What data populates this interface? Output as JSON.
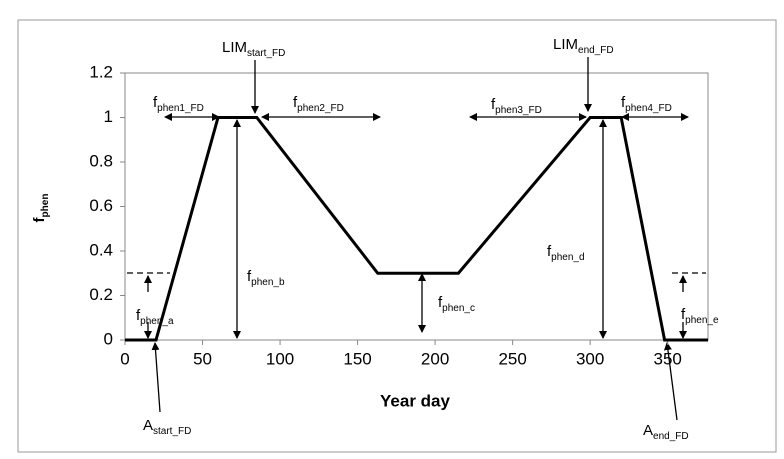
{
  "chart_data": {
    "type": "line",
    "x_label": "Year day",
    "y_label": {
      "text": "f",
      "sub": "phen"
    },
    "x": [
      0,
      20,
      60,
      85,
      163,
      215,
      300,
      320,
      348,
      376
    ],
    "series": [
      {
        "color": "#000000",
        "values": [
          0,
          0,
          1,
          1,
          0.3,
          0.3,
          1,
          1,
          0,
          0
        ]
      }
    ],
    "xlim": [
      0,
      376
    ],
    "ylim": [
      0,
      1.2
    ],
    "xticks": [
      0,
      50,
      100,
      150,
      200,
      250,
      300,
      350
    ],
    "yticks": [
      0,
      0.2,
      0.4,
      0.6,
      0.8,
      1,
      1.2
    ],
    "annotations": [
      {
        "text": "f",
        "sub": "phen1_FD"
      },
      {
        "text": "f",
        "sub": "phen2_FD"
      },
      {
        "text": "f",
        "sub": "phen3_FD"
      },
      {
        "text": "f",
        "sub": "phen4_FD"
      },
      {
        "text": "LIM",
        "sub": "start_FD"
      },
      {
        "text": "LIM",
        "sub": "end_FD"
      },
      {
        "text": "f",
        "sub": "phen_a"
      },
      {
        "text": "f",
        "sub": "phen_b"
      },
      {
        "text": "f",
        "sub": "phen_c"
      },
      {
        "text": "f",
        "sub": "phen_d"
      },
      {
        "text": "f",
        "sub": "phen_e"
      },
      {
        "text": "A",
        "sub": "start_FD"
      },
      {
        "text": "A",
        "sub": "end_FD"
      }
    ]
  }
}
